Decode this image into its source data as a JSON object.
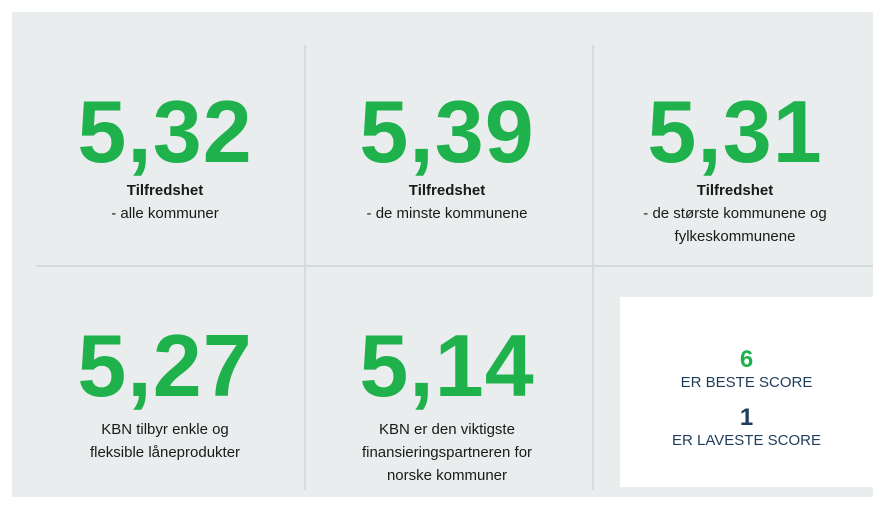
{
  "stats": [
    {
      "value": "5,32",
      "title": "Tilfredshet",
      "lines": [
        "- alle kommuner"
      ]
    },
    {
      "value": "5,39",
      "title": "Tilfredshet",
      "lines": [
        "- de minste kommunene"
      ]
    },
    {
      "value": "5,31",
      "title": "Tilfredshet",
      "lines": [
        "- de største kommunene og",
        "fylkeskommunene"
      ]
    },
    {
      "value": "5,27",
      "lines": [
        "KBN tilbyr enkle og",
        "fleksible låneprodukter"
      ]
    },
    {
      "value": "5,14",
      "lines": [
        "KBN er den viktigste",
        "finansieringspartneren for",
        "norske kommuner"
      ]
    }
  ],
  "scale": {
    "best": {
      "value": 6,
      "label": "ER BESTE SCORE"
    },
    "worst": {
      "value": 1,
      "label": "ER LAVESTE SCORE"
    }
  }
}
